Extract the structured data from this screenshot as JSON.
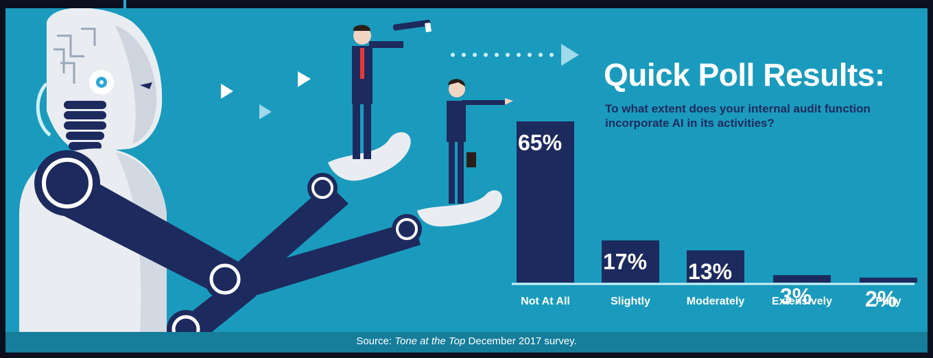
{
  "title": "Quick Poll Results:",
  "subtitle": "To what extent does your internal audit function incorporate AI in its activities?",
  "source": {
    "prefix": "Source:",
    "publication": "Tone at the Top",
    "suffix": "December 2017 survey."
  },
  "colors": {
    "background": "#1a9bbd",
    "bar": "#1d2a5e",
    "bar_label": "#ffffff",
    "category_label": "#ffffff",
    "subtitle": "#1d2a5e",
    "source_bar": "#167d9a"
  },
  "chart_data": {
    "type": "bar",
    "title": "Quick Poll Results:",
    "subtitle": "To what extent does your internal audit function incorporate AI in its activities?",
    "categories": [
      "Not At All",
      "Slightly",
      "Moderately",
      "Extensively",
      "Fully"
    ],
    "values": [
      65,
      17,
      13,
      3,
      2
    ],
    "value_labels": [
      "65%",
      "17%",
      "13%",
      "3%",
      "2%"
    ],
    "xlabel": "",
    "ylabel": "",
    "grid": false,
    "legend": "none"
  }
}
